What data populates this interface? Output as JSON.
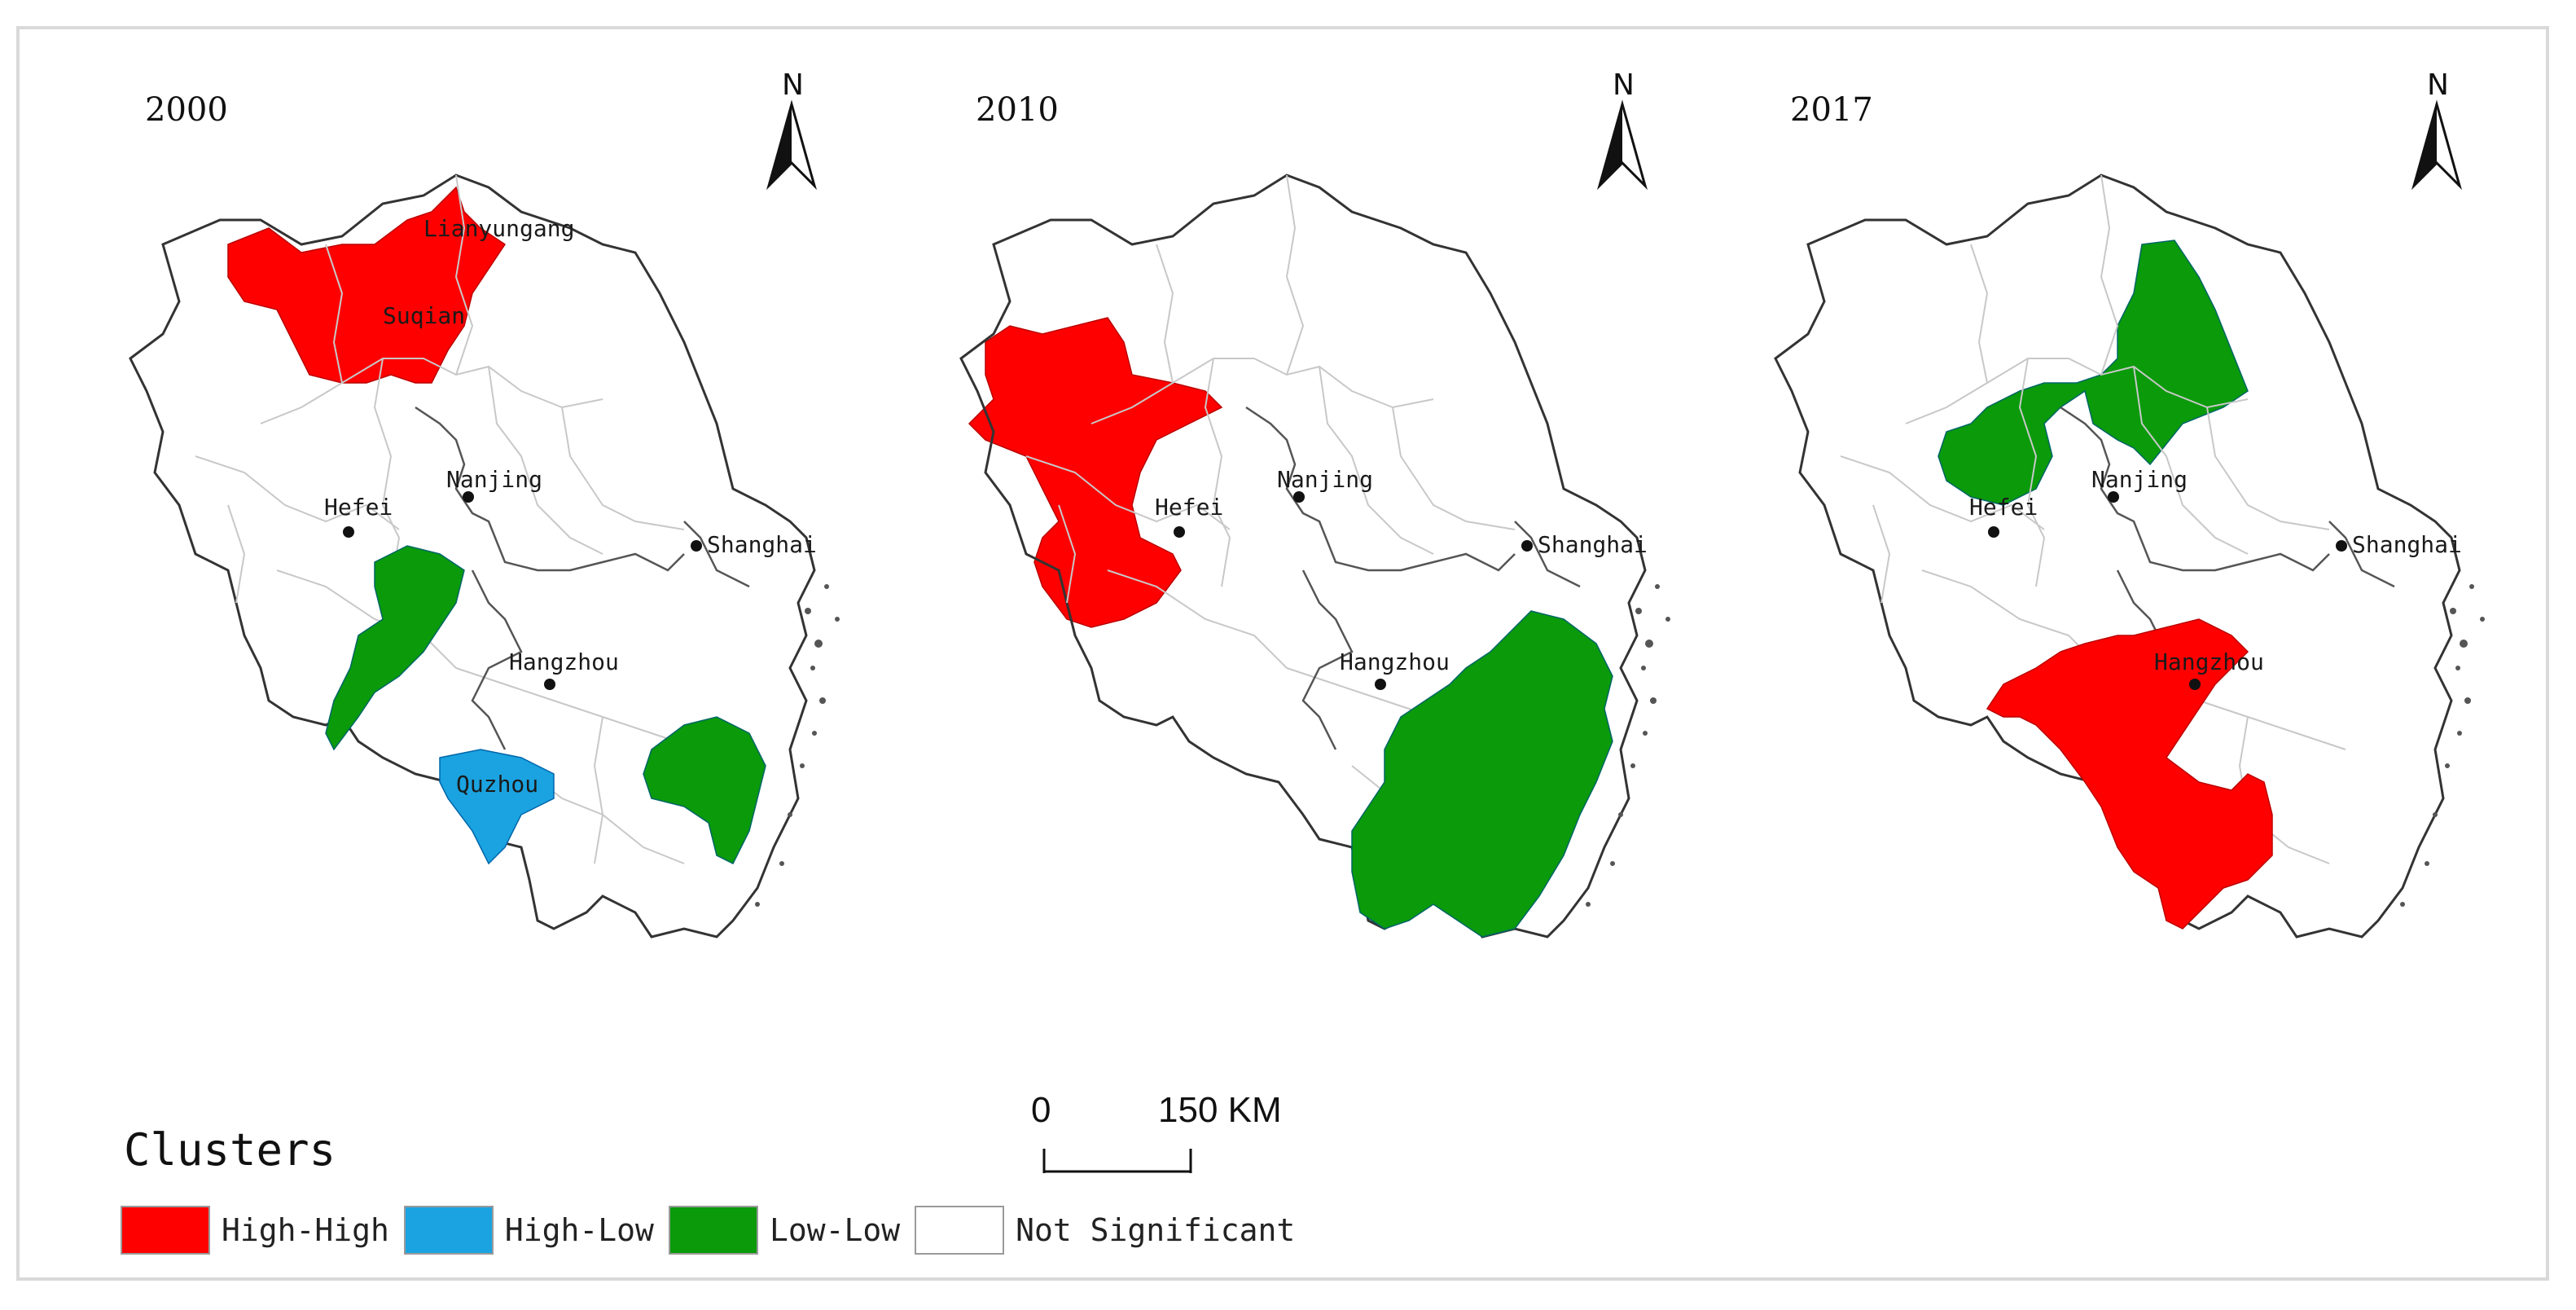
{
  "panels": [
    {
      "year": "2000",
      "cities": [
        {
          "name": "Lianyungang"
        },
        {
          "name": "Suqian"
        },
        {
          "name": "Nanjing"
        },
        {
          "name": "Hefei"
        },
        {
          "name": "Shanghai"
        },
        {
          "name": "Hangzhou"
        },
        {
          "name": "Quzhou"
        }
      ],
      "regions": [
        {
          "cluster": "High-High",
          "area": "northern Jiangsu / northern Anhui (Lianyungang–Suqian)"
        },
        {
          "cluster": "Low-Low",
          "area": "southern Anhui"
        },
        {
          "cluster": "High-Low",
          "area": "Quzhou"
        },
        {
          "cluster": "Low-Low",
          "area": "southeastern Zhejiang"
        }
      ]
    },
    {
      "year": "2010",
      "cities": [
        {
          "name": "Nanjing"
        },
        {
          "name": "Hefei"
        },
        {
          "name": "Shanghai"
        },
        {
          "name": "Hangzhou"
        }
      ],
      "regions": [
        {
          "cluster": "High-High",
          "area": "western Anhui"
        },
        {
          "cluster": "Low-Low",
          "area": "southern and eastern Zhejiang"
        }
      ]
    },
    {
      "year": "2017",
      "cities": [
        {
          "name": "Nanjing"
        },
        {
          "name": "Hefei"
        },
        {
          "name": "Shanghai"
        },
        {
          "name": "Hangzhou"
        }
      ],
      "regions": [
        {
          "cluster": "Low-Low",
          "area": "central Jiangsu and eastern Anhui"
        },
        {
          "cluster": "High-High",
          "area": "western and central Zhejiang"
        }
      ]
    }
  ],
  "north_arrow_label": "N",
  "scale": {
    "start": "0",
    "end": "150 KM"
  },
  "legend": {
    "title": "Clusters",
    "items": [
      {
        "label": "High-High",
        "color": "#ff0000"
      },
      {
        "label": "High-Low",
        "color": "#1aa3e0"
      },
      {
        "label": "Low-Low",
        "color": "#0a9a0a"
      },
      {
        "label": "Not Significant",
        "color": "#ffffff"
      }
    ]
  }
}
